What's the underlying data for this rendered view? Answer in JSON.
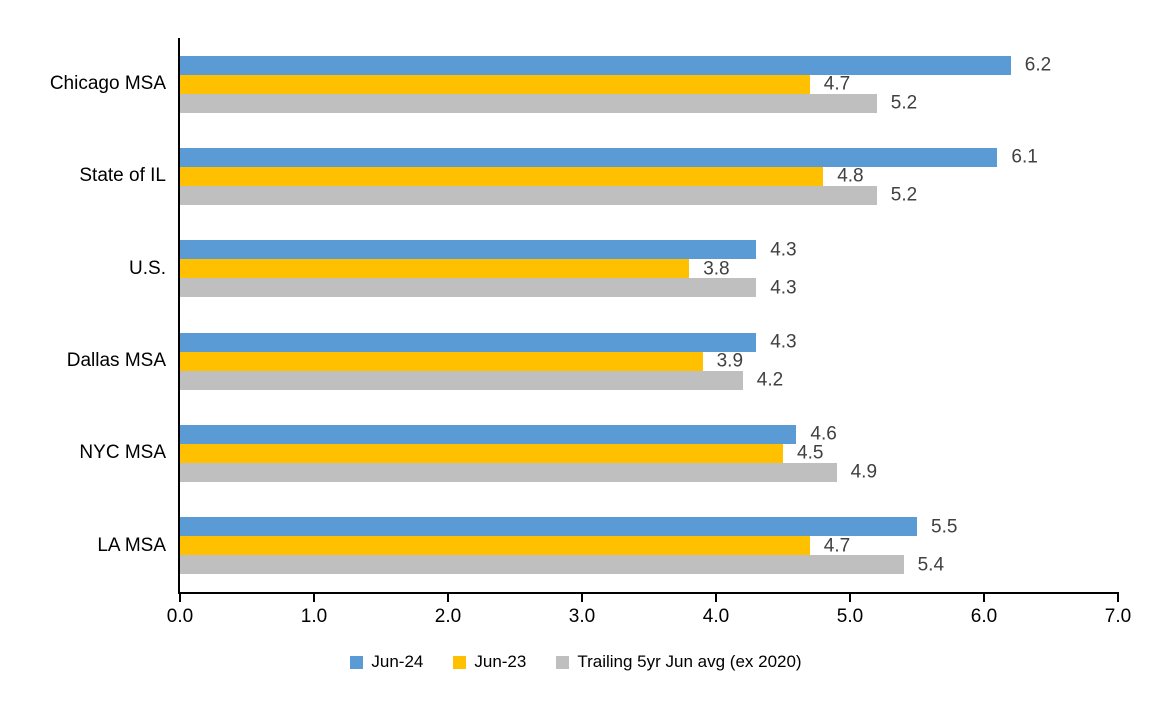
{
  "chart_data": {
    "type": "bar",
    "orientation": "horizontal",
    "title": "",
    "categories": [
      "Chicago MSA",
      "State of IL",
      "U.S.",
      "Dallas MSA",
      "NYC MSA",
      "LA MSA"
    ],
    "series": [
      {
        "name": "Jun-24",
        "color": "#5B9BD5",
        "values": [
          6.2,
          6.1,
          4.3,
          4.3,
          4.6,
          5.5
        ]
      },
      {
        "name": "Jun-23",
        "color": "#FFC000",
        "values": [
          4.7,
          4.8,
          3.8,
          3.9,
          4.5,
          4.7
        ]
      },
      {
        "name": "Trailing 5yr Jun avg (ex 2020)",
        "color": "#BFBFBF",
        "values": [
          5.2,
          5.2,
          4.3,
          4.2,
          4.9,
          5.4
        ]
      }
    ],
    "xlim": [
      0,
      7
    ],
    "xtick_labels": [
      "0.0",
      "1.0",
      "2.0",
      "3.0",
      "4.0",
      "5.0",
      "6.0",
      "7.0"
    ],
    "xlabel": "",
    "ylabel": "",
    "grid": false,
    "data_labels": true,
    "data_label_format": "one-decimal",
    "data_label_color": "#404040",
    "axis_color": "#000000",
    "background_color": "#FFFFFF",
    "legend_position": "bottom"
  }
}
